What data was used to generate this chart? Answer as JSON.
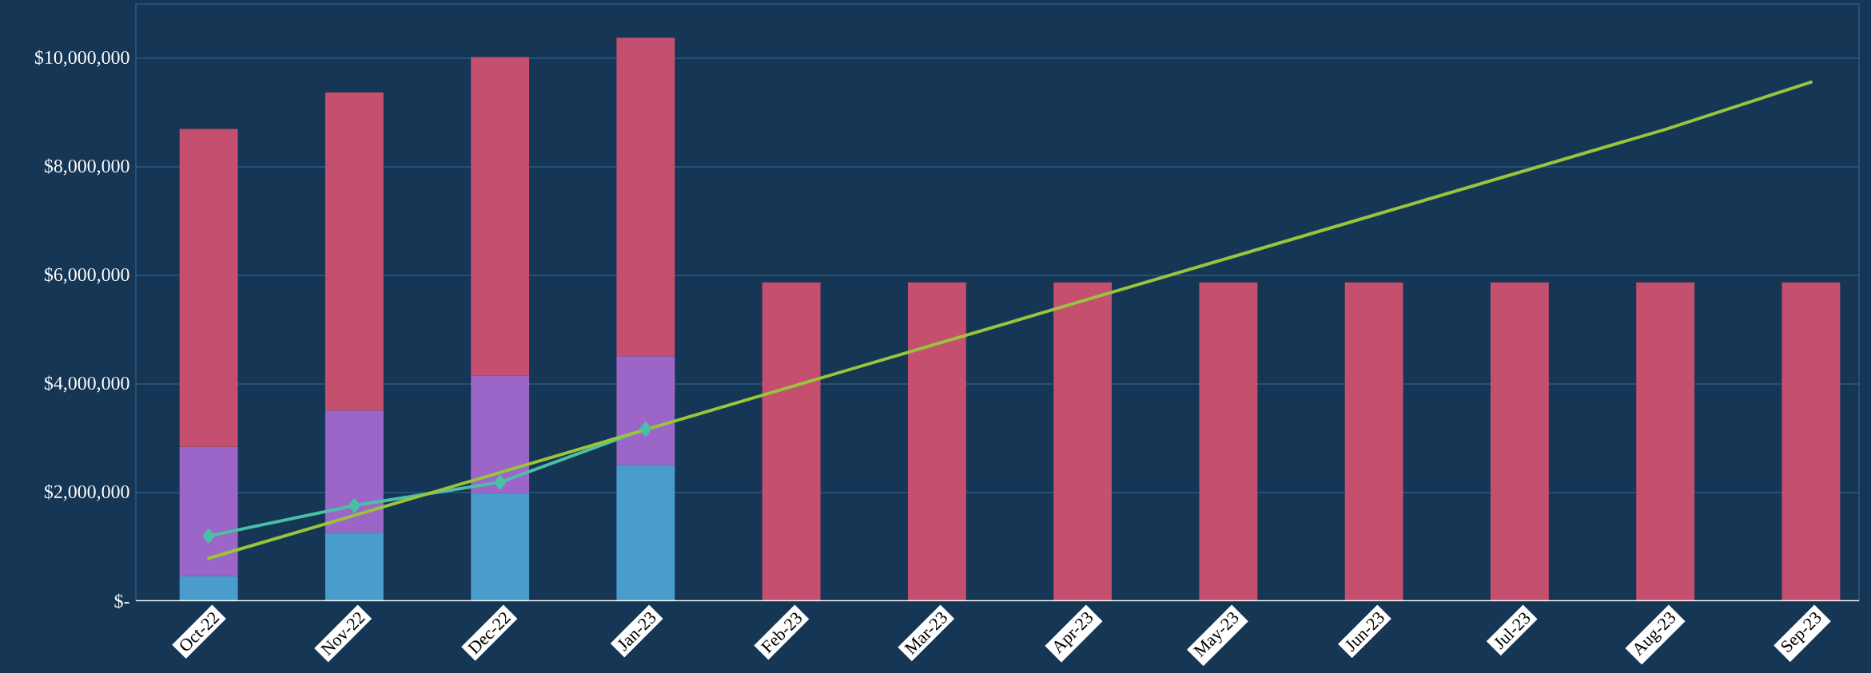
{
  "chart_data": {
    "type": "bar",
    "stacked": true,
    "categories": [
      "Oct-22",
      "Nov-22",
      "Dec-22",
      "Jan-23",
      "Feb-23",
      "Mar-23",
      "Apr-23",
      "May-23",
      "Jun-23",
      "Jul-23",
      "Aug-23",
      "Sep-23"
    ],
    "series": [
      {
        "color": "#4a9ccc",
        "values": [
          460000,
          1260000,
          1990000,
          2510000,
          null,
          null,
          null,
          null,
          null,
          null,
          null,
          null
        ]
      },
      {
        "color": "#9b66c8",
        "values": [
          2380000,
          2250000,
          2160000,
          2000000,
          null,
          null,
          null,
          null,
          null,
          null,
          null,
          null
        ]
      },
      {
        "color": "#c44f6f",
        "values": [
          5860000,
          5860000,
          5870000,
          5870000,
          5870000,
          5870000,
          5870000,
          5870000,
          5870000,
          5870000,
          5870000,
          5870000
        ]
      },
      {
        "type": "line",
        "color": "#4bbfa5",
        "marker": "diamond",
        "values": [
          1200000,
          1760000,
          2190000,
          3170000,
          null,
          null,
          null,
          null,
          null,
          null,
          null,
          null
        ]
      },
      {
        "type": "line",
        "color": "#9ac43c",
        "marker": "none",
        "values": [
          790000,
          1580000,
          2370000,
          3160000,
          3950000,
          4740000,
          5530000,
          6320000,
          7110000,
          7900000,
          8690000,
          9560000
        ]
      }
    ],
    "ylim": [
      0,
      11000000
    ],
    "yticks": [
      {
        "value": 0,
        "label": "$-"
      },
      {
        "value": 2000000,
        "label": "$2,000,000"
      },
      {
        "value": 4000000,
        "label": "$4,000,000"
      },
      {
        "value": 6000000,
        "label": "$6,000,000"
      },
      {
        "value": 8000000,
        "label": "$8,000,000"
      },
      {
        "value": 10000000,
        "label": "$10,000,000"
      }
    ],
    "grid": "y",
    "legend": false
  }
}
